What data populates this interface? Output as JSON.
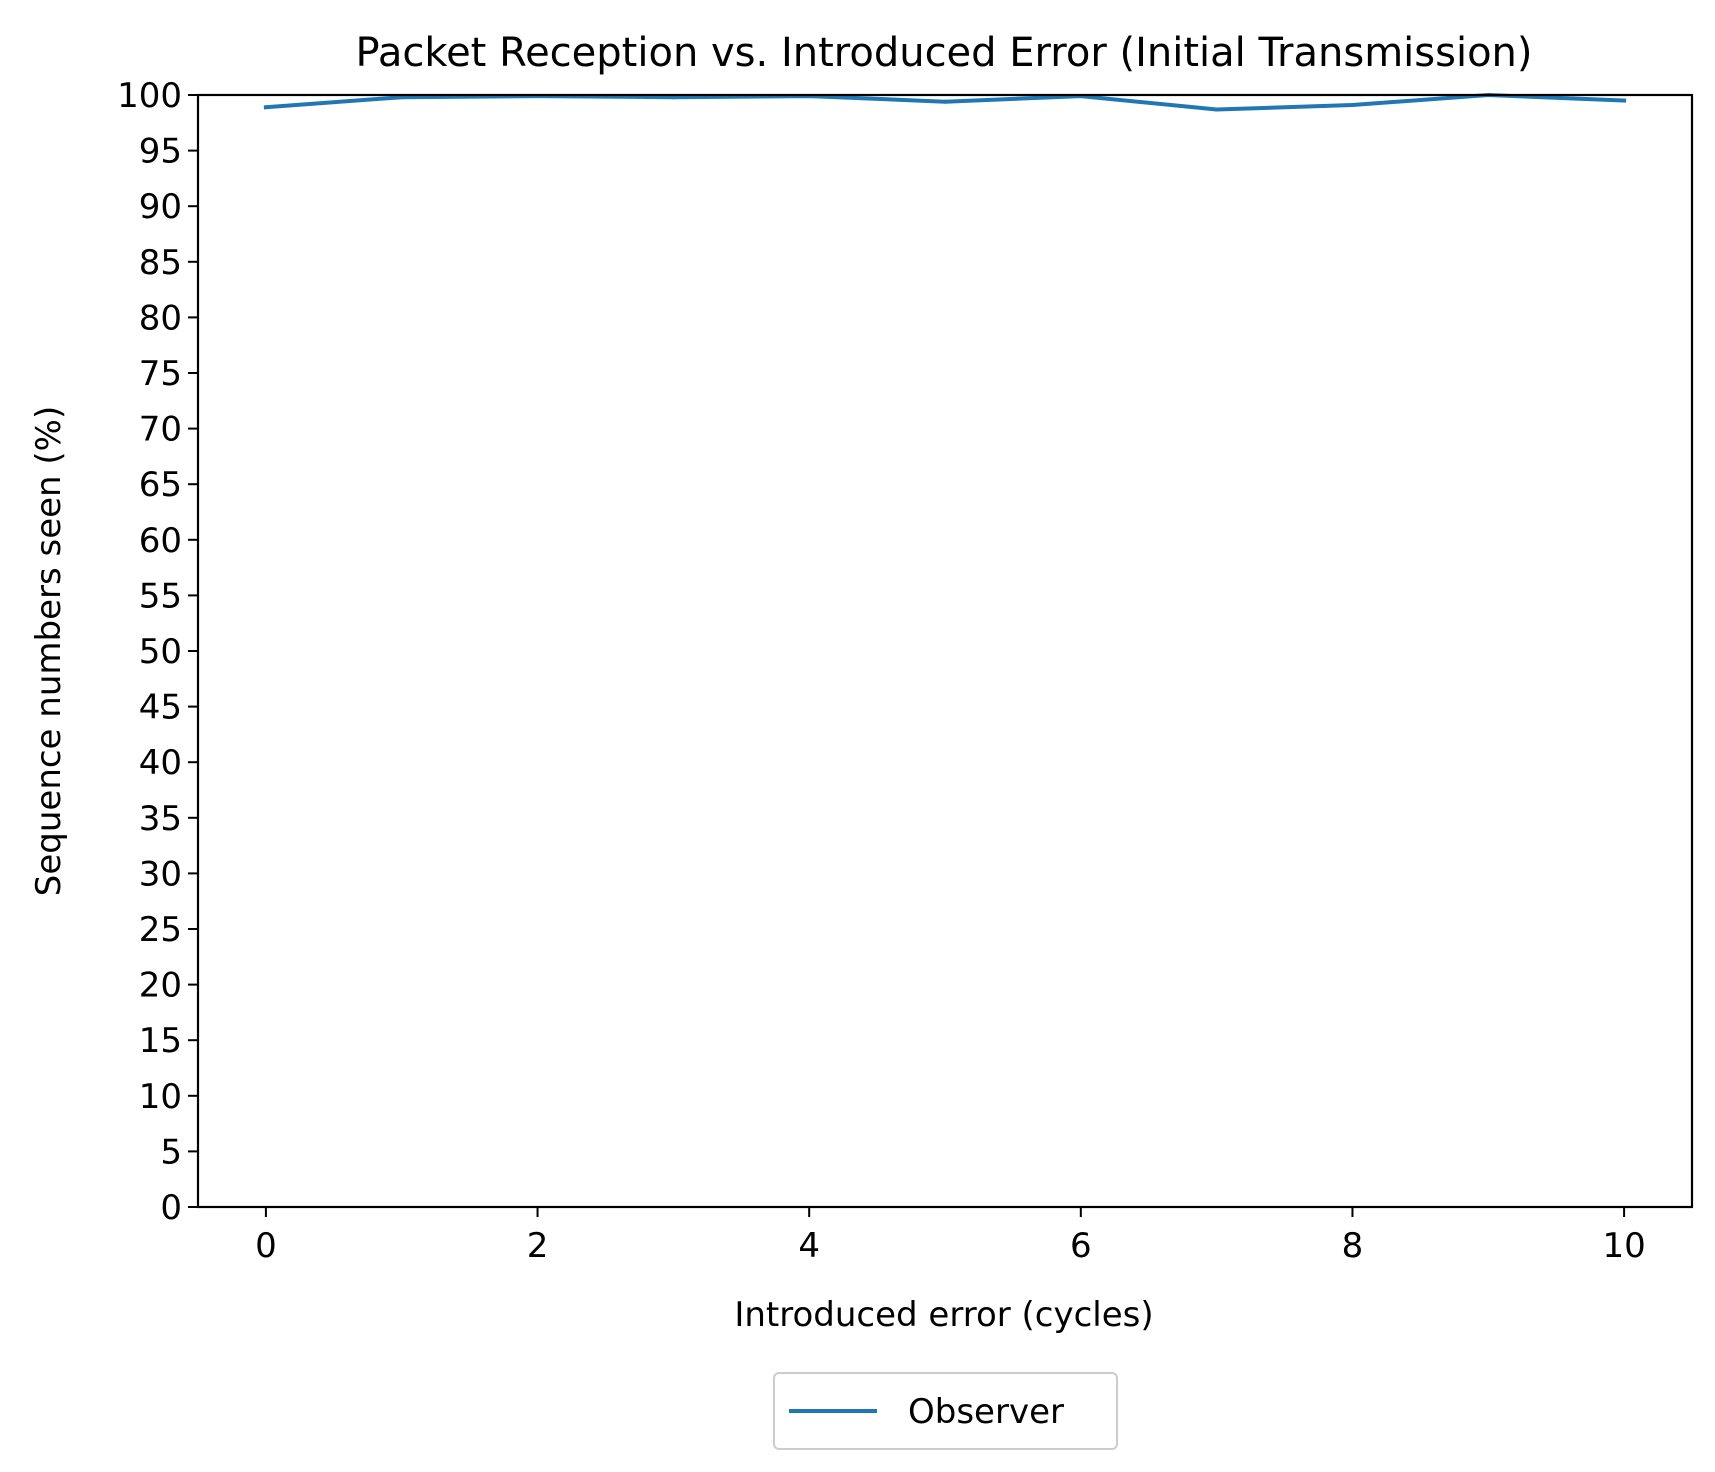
{
  "chart_data": {
    "type": "line",
    "title": "Packet Reception vs. Introduced Error (Initial Transmission)",
    "xlabel": "Introduced error (cycles)",
    "ylabel": "Sequence numbers seen (%)",
    "xlim": [
      -0.5,
      10.5
    ],
    "ylim": [
      0,
      100
    ],
    "xticks": [
      0,
      2,
      4,
      6,
      8,
      10
    ],
    "xtick_labels": [
      "0",
      "2",
      "4",
      "6",
      "8",
      "10"
    ],
    "yticks": [
      0,
      5,
      10,
      15,
      20,
      25,
      30,
      35,
      40,
      45,
      50,
      55,
      60,
      65,
      70,
      75,
      80,
      85,
      90,
      95,
      100
    ],
    "ytick_labels": [
      "0",
      "5",
      "10",
      "15",
      "20",
      "25",
      "30",
      "35",
      "40",
      "45",
      "50",
      "55",
      "60",
      "65",
      "70",
      "75",
      "80",
      "85",
      "90",
      "95",
      "100"
    ],
    "grid": false,
    "legend_position": "below-center",
    "x": [
      0,
      1,
      2,
      3,
      4,
      5,
      6,
      7,
      8,
      9,
      10
    ],
    "series": [
      {
        "name": "Observer",
        "color": "#1f77b4",
        "values": [
          98.9,
          99.8,
          99.9,
          99.8,
          99.9,
          99.4,
          99.9,
          98.7,
          99.1,
          100.0,
          99.5
        ]
      }
    ]
  }
}
